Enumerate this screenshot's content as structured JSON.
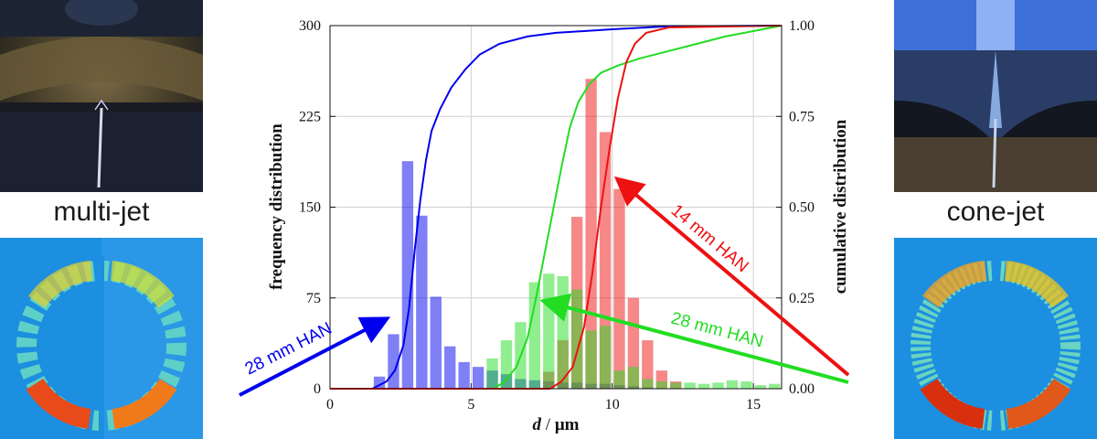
{
  "panels": {
    "left_label": "multi-jet",
    "right_label": "cone-jet"
  },
  "chart_data": {
    "type": "bar",
    "xlabel_var": "d",
    "xlabel_unit": "μm",
    "ylabel_left": "frequency distribution",
    "ylabel_right": "cumulative distribution",
    "xlim": [
      0,
      16
    ],
    "ylim_left": [
      0,
      300
    ],
    "ylim_right": [
      0,
      1
    ],
    "xticks": [
      "0",
      "5",
      "10",
      "15"
    ],
    "yticks_left": [
      "0",
      "75",
      "150",
      "225",
      "300"
    ],
    "yticks_right": [
      "0.00",
      "0.25",
      "0.50",
      "0.75",
      "1.00"
    ],
    "grid": true,
    "bin_width": 0.5,
    "colors": {
      "blue": "#0000ee",
      "green": "#22dd22",
      "red": "#ee1111"
    },
    "histograms": [
      {
        "name": "28 mm HAN",
        "color": "#0000ee",
        "bins": [
          {
            "x": 1.75,
            "y": 10
          },
          {
            "x": 2.25,
            "y": 45
          },
          {
            "x": 2.75,
            "y": 188
          },
          {
            "x": 3.25,
            "y": 143
          },
          {
            "x": 3.75,
            "y": 76
          },
          {
            "x": 4.25,
            "y": 35
          },
          {
            "x": 4.75,
            "y": 22
          },
          {
            "x": 5.25,
            "y": 18
          },
          {
            "x": 5.75,
            "y": 15
          },
          {
            "x": 6.25,
            "y": 12
          },
          {
            "x": 6.75,
            "y": 8
          },
          {
            "x": 7.25,
            "y": 7
          },
          {
            "x": 7.75,
            "y": 6
          },
          {
            "x": 8.25,
            "y": 5
          },
          {
            "x": 8.75,
            "y": 5
          },
          {
            "x": 9.25,
            "y": 4
          },
          {
            "x": 9.75,
            "y": 4
          },
          {
            "x": 10.25,
            "y": 3
          },
          {
            "x": 10.75,
            "y": 2
          },
          {
            "x": 11.25,
            "y": 1
          }
        ]
      },
      {
        "name": "14 mm HAN",
        "color": "#ee1111",
        "bins": [
          {
            "x": 7.75,
            "y": 14
          },
          {
            "x": 8.25,
            "y": 40
          },
          {
            "x": 8.75,
            "y": 142
          },
          {
            "x": 9.25,
            "y": 256
          },
          {
            "x": 9.75,
            "y": 212
          },
          {
            "x": 10.25,
            "y": 165
          },
          {
            "x": 10.75,
            "y": 75
          },
          {
            "x": 11.25,
            "y": 40
          },
          {
            "x": 11.75,
            "y": 15
          },
          {
            "x": 12.25,
            "y": 6
          }
        ]
      },
      {
        "name": "28 mm HAN",
        "color": "#22dd22",
        "bins": [
          {
            "x": 5.75,
            "y": 25
          },
          {
            "x": 6.25,
            "y": 40
          },
          {
            "x": 6.75,
            "y": 55
          },
          {
            "x": 7.25,
            "y": 88
          },
          {
            "x": 7.75,
            "y": 95
          },
          {
            "x": 8.25,
            "y": 93
          },
          {
            "x": 8.75,
            "y": 82
          },
          {
            "x": 9.25,
            "y": 48
          },
          {
            "x": 9.75,
            "y": 52
          },
          {
            "x": 10.25,
            "y": 15
          },
          {
            "x": 10.75,
            "y": 18
          },
          {
            "x": 11.25,
            "y": 8
          },
          {
            "x": 11.75,
            "y": 6
          },
          {
            "x": 12.25,
            "y": 5
          },
          {
            "x": 12.75,
            "y": 5
          },
          {
            "x": 13.25,
            "y": 4
          },
          {
            "x": 13.75,
            "y": 5
          },
          {
            "x": 14.25,
            "y": 7
          },
          {
            "x": 14.75,
            "y": 6
          },
          {
            "x": 15.25,
            "y": 3
          },
          {
            "x": 15.75,
            "y": 4
          }
        ]
      }
    ],
    "cumulative": [
      {
        "name": "28 mm HAN",
        "color": "#0000ee",
        "points": [
          [
            0,
            0
          ],
          [
            1.5,
            0
          ],
          [
            2,
            0.02
          ],
          [
            2.3,
            0.05
          ],
          [
            2.6,
            0.12
          ],
          [
            2.8,
            0.22
          ],
          [
            3,
            0.38
          ],
          [
            3.2,
            0.52
          ],
          [
            3.4,
            0.63
          ],
          [
            3.6,
            0.71
          ],
          [
            3.9,
            0.77
          ],
          [
            4.3,
            0.83
          ],
          [
            4.8,
            0.88
          ],
          [
            5.3,
            0.92
          ],
          [
            6,
            0.95
          ],
          [
            7,
            0.97
          ],
          [
            8,
            0.98
          ],
          [
            10,
            0.99
          ],
          [
            12,
            0.998
          ],
          [
            16,
            1
          ]
        ]
      },
      {
        "name": "28 mm HAN",
        "color": "#22dd22",
        "points": [
          [
            0,
            0
          ],
          [
            5.8,
            0
          ],
          [
            6.2,
            0.02
          ],
          [
            6.6,
            0.06
          ],
          [
            7,
            0.14
          ],
          [
            7.3,
            0.25
          ],
          [
            7.6,
            0.37
          ],
          [
            7.9,
            0.49
          ],
          [
            8.2,
            0.61
          ],
          [
            8.5,
            0.72
          ],
          [
            8.8,
            0.79
          ],
          [
            9.2,
            0.84
          ],
          [
            9.6,
            0.87
          ],
          [
            10.2,
            0.89
          ],
          [
            11,
            0.91
          ],
          [
            12,
            0.93
          ],
          [
            13,
            0.95
          ],
          [
            14,
            0.97
          ],
          [
            15,
            0.985
          ],
          [
            16,
            1
          ]
        ]
      },
      {
        "name": "14 mm HAN",
        "color": "#ee1111",
        "points": [
          [
            0,
            0
          ],
          [
            7.8,
            0
          ],
          [
            8.2,
            0.02
          ],
          [
            8.6,
            0.06
          ],
          [
            9,
            0.17
          ],
          [
            9.3,
            0.32
          ],
          [
            9.6,
            0.5
          ],
          [
            9.9,
            0.66
          ],
          [
            10.2,
            0.8
          ],
          [
            10.5,
            0.9
          ],
          [
            10.8,
            0.95
          ],
          [
            11.2,
            0.98
          ],
          [
            12,
            0.995
          ],
          [
            16,
            1
          ]
        ]
      }
    ],
    "annotations": [
      {
        "text": "28 mm HAN",
        "color": "#0000ee"
      },
      {
        "text": "28 mm HAN",
        "color": "#22dd22"
      },
      {
        "text": "14 mm HAN",
        "color": "#ee1111"
      }
    ]
  }
}
